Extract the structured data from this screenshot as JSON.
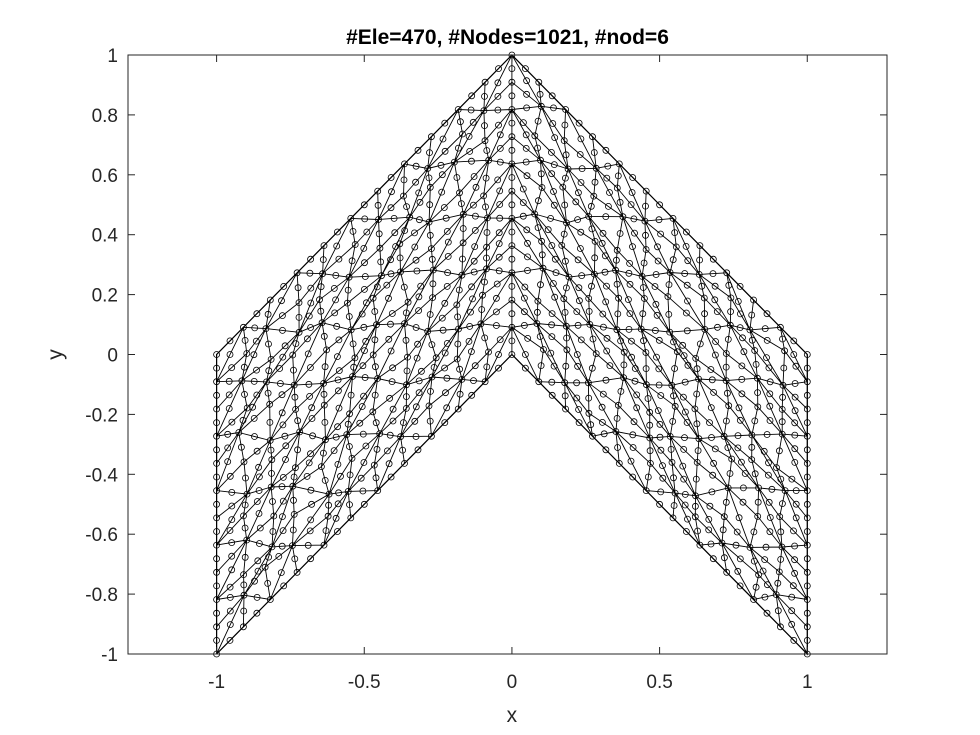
{
  "chart_data": {
    "type": "scatter",
    "title": "#Ele=470, #Nodes=1021, #nod=6",
    "xlabel": "x",
    "ylabel": "y",
    "xlim": [
      -1.3,
      1.27
    ],
    "ylim": [
      -1,
      1
    ],
    "x_ticks": [
      -1,
      -0.5,
      0,
      0.5,
      1
    ],
    "x_tick_labels": [
      "-1",
      "-0.5",
      "0",
      "0.5",
      "1"
    ],
    "y_ticks": [
      -1,
      -0.8,
      -0.6,
      -0.4,
      -0.2,
      0,
      0.2,
      0.4,
      0.6,
      0.8,
      1
    ],
    "y_tick_labels": [
      "-1",
      "-0.8",
      "-0.6",
      "-0.4",
      "-0.2",
      "0",
      "0.2",
      "0.4",
      "0.6",
      "0.8",
      "1"
    ],
    "grid": false,
    "box": true,
    "domain_outline": {
      "x": [
        -1,
        0,
        1,
        1,
        0,
        -1,
        -1
      ],
      "y": [
        -1,
        0,
        -1,
        0,
        1,
        0,
        -1
      ]
    },
    "mesh": {
      "element_count": 470,
      "node_count": 1021,
      "nodes_per_element": 6,
      "marker": "open-circle",
      "edge_color": "#000000"
    }
  },
  "colors": {
    "axes": "#262626",
    "mesh": "#000000",
    "background": "#ffffff"
  }
}
